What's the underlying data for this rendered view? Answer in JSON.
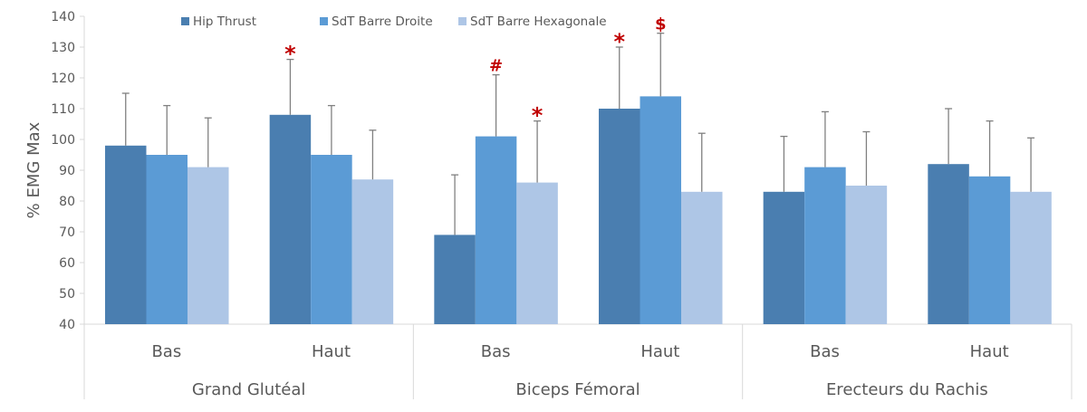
{
  "chart_data": {
    "type": "bar",
    "ylabel": "% EMG Max",
    "ylim": [
      40,
      140
    ],
    "yticks": [
      40,
      50,
      60,
      70,
      80,
      90,
      100,
      110,
      120,
      130,
      140
    ],
    "grid": false,
    "legend_position": "top",
    "groups": [
      "Grand Glutéal",
      "Biceps Fémoral",
      "Erecteurs du Rachis"
    ],
    "categories": [
      "Bas",
      "Haut",
      "Bas",
      "Haut",
      "Bas",
      "Haut"
    ],
    "series": [
      {
        "name": "Hip Thrust",
        "color": "#4A7EB0",
        "values": [
          98,
          108,
          69,
          110,
          83,
          92
        ],
        "error_upper": [
          115,
          126,
          88.5,
          130,
          101,
          110
        ]
      },
      {
        "name": "SdT Barre Droite",
        "color": "#5B9BD5",
        "values": [
          95,
          95,
          101,
          114,
          91,
          88
        ],
        "error_upper": [
          111,
          111,
          121,
          134.5,
          109,
          106
        ]
      },
      {
        "name": "SdT Barre Hexagonale",
        "color": "#AEC6E6",
        "values": [
          91,
          87,
          86,
          83,
          85,
          83
        ],
        "error_upper": [
          107,
          103,
          106,
          102,
          102.5,
          100.5
        ]
      }
    ],
    "annotations": [
      {
        "category_index": 1,
        "series_index": 0,
        "text": "*"
      },
      {
        "category_index": 2,
        "series_index": 1,
        "text": "#"
      },
      {
        "category_index": 2,
        "series_index": 2,
        "text": "*"
      },
      {
        "category_index": 3,
        "series_index": 0,
        "text": "*"
      },
      {
        "category_index": 3,
        "series_index": 1,
        "text": "$"
      }
    ],
    "annotation_color": "#C00000"
  }
}
